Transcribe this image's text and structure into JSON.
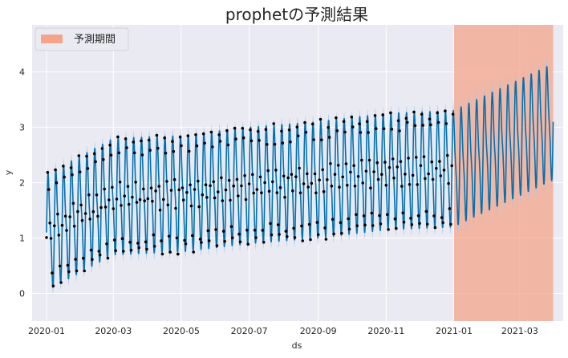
{
  "chart_data": {
    "type": "line",
    "title": "prophetの予測結果",
    "xlabel": "ds",
    "ylabel": "y",
    "xlim": [
      "2019-12-19",
      "2021-04-09"
    ],
    "ylim": [
      -0.5,
      4.85
    ],
    "yticks": [
      0,
      1,
      2,
      3,
      4
    ],
    "xticks": [
      "2020-01",
      "2020-03",
      "2020-05",
      "2020-07",
      "2020-09",
      "2020-11",
      "2021-01",
      "2021-03"
    ],
    "grid": true,
    "background": "#eaeaf2",
    "legend": {
      "placement": "top-left",
      "entries": [
        "予測期間"
      ]
    },
    "history_range": [
      "2020-01-01",
      "2020-12-31"
    ],
    "forecast_period": {
      "start": "2021-01-01",
      "end": "2021-03-31",
      "color": "#f4a48a"
    },
    "colors": {
      "forecast_line": "#0072b2",
      "interval": "#a6c8e6",
      "points": "#000000"
    },
    "series": [
      {
        "kind": "forecast",
        "components": {
          "trend_knots_x": [
            "2020-01-01",
            "2020-03-01",
            "2020-05-01",
            "2020-07-01",
            "2020-09-01",
            "2020-11-01",
            "2020-12-31",
            "2021-03-31"
          ],
          "trend_knots_y": [
            1.1,
            1.75,
            1.8,
            1.95,
            2.05,
            2.2,
            2.25,
            3.1
          ],
          "weekly_amplitude": 1.1,
          "weekly_period_days": 7,
          "interval_halfwidth": 0.12
        }
      },
      {
        "kind": "observed",
        "points_per_day": 1
      }
    ]
  }
}
